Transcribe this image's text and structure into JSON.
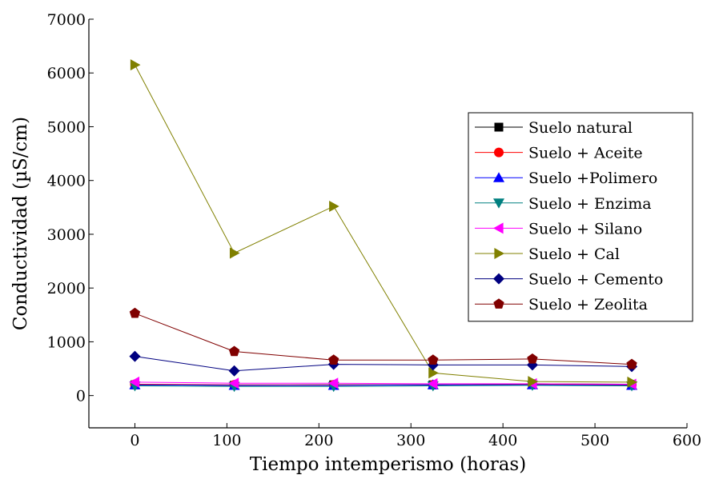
{
  "chart_data": {
    "type": "line",
    "title": "",
    "xlabel": "Tiempo intemperismo (horas)",
    "ylabel": "Conductividad (µS/cm)",
    "xlim": [
      -50,
      600
    ],
    "ylim": [
      -600,
      7000
    ],
    "xticks": [
      0,
      100,
      200,
      300,
      400,
      500,
      600
    ],
    "yticks": [
      0,
      1000,
      2000,
      3000,
      4000,
      5000,
      6000,
      7000
    ],
    "x": [
      0,
      108,
      216,
      324,
      432,
      540
    ],
    "legend_position": "right",
    "grid": false,
    "series": [
      {
        "name": "Suelo natural",
        "color": "#000000",
        "marker": "square",
        "values": [
          200,
          190,
          200,
          200,
          220,
          210
        ]
      },
      {
        "name": "Suelo + Aceite",
        "color": "#ff0000",
        "marker": "circle",
        "values": [
          210,
          200,
          200,
          200,
          210,
          200
        ]
      },
      {
        "name": "Suelo +Polimero",
        "color": "#0000ff",
        "marker": "triangle-up",
        "values": [
          200,
          190,
          190,
          200,
          200,
          190
        ]
      },
      {
        "name": "Suelo + Enzima",
        "color": "#008080",
        "marker": "triangle-down",
        "values": [
          180,
          170,
          170,
          180,
          190,
          180
        ]
      },
      {
        "name": "Suelo + Silano",
        "color": "#ff00ff",
        "marker": "triangle-left",
        "values": [
          250,
          230,
          230,
          220,
          220,
          210
        ]
      },
      {
        "name": "Suelo + Cal",
        "color": "#808000",
        "marker": "triangle-right",
        "values": [
          6150,
          2650,
          3520,
          420,
          260,
          250
        ]
      },
      {
        "name": "Suelo + Cemento",
        "color": "#000080",
        "marker": "diamond",
        "values": [
          730,
          460,
          580,
          570,
          570,
          540
        ]
      },
      {
        "name": "Suelo + Zeolita",
        "color": "#800000",
        "marker": "pentagon",
        "values": [
          1530,
          820,
          660,
          660,
          680,
          580
        ]
      }
    ]
  }
}
